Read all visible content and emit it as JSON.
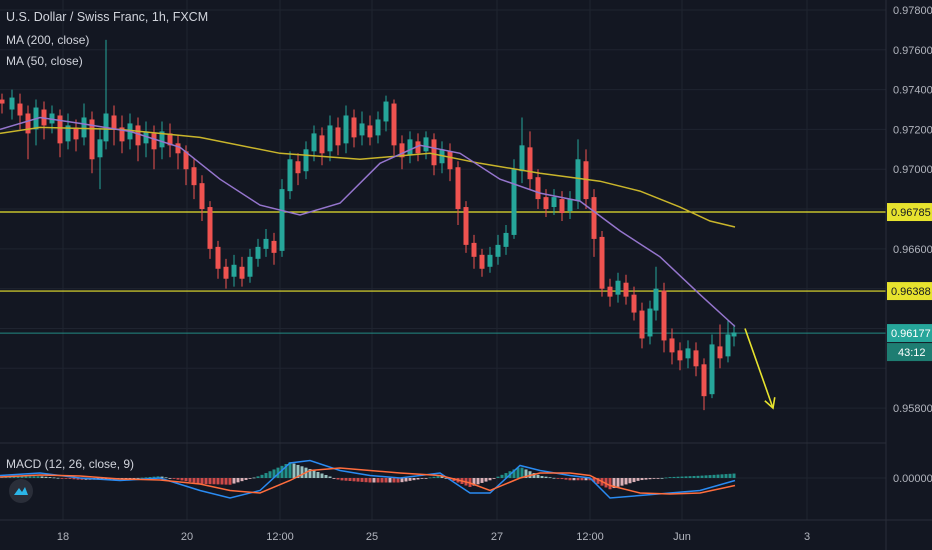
{
  "header": {
    "title": "U.S. Dollar / Swiss Franc, 1h, FXCM",
    "ma200_label": "MA (200, close)",
    "ma50_label": "MA (50, close)",
    "macd_label": "MACD (12, 26, close, 9)"
  },
  "colors": {
    "background": "#131722",
    "grid": "#1f2430",
    "up": "#26a69a",
    "down": "#ef5350",
    "ma200": "#c9b52b",
    "ma50": "#9575cd",
    "hline": "#e7e32e",
    "price_line": "#26a69a",
    "macd_line": "#2a8bf2",
    "signal_line": "#ff6d3d",
    "arrow": "#e7e32e"
  },
  "chart_data": [
    {
      "type": "line",
      "title": "U.S. Dollar / Swiss Franc, 1h, FXCM",
      "note_series": "candlestick price series with moving averages",
      "x_ticks": [
        "18",
        "20",
        "12:00",
        "25",
        "27",
        "12:00",
        "Jun",
        "3"
      ],
      "y_ticks": [
        "0.97800",
        "0.97600",
        "0.97400",
        "0.97200",
        "0.97000",
        "0.96600",
        "0.95800"
      ],
      "ylim": [
        0.9568,
        0.9782
      ],
      "price_tags": [
        {
          "label": "0.96785",
          "value": 0.96785,
          "style": "hline"
        },
        {
          "label": "0.96388",
          "value": 0.96388,
          "style": "hline"
        },
        {
          "label": "0.96177",
          "value": 0.96177,
          "style": "last"
        }
      ],
      "countdown": "43:12",
      "horizontal_lines": [
        0.96785,
        0.96388
      ],
      "series": [
        {
          "name": "MA (200, close)",
          "role": "ma200",
          "points": [
            [
              0,
              0.9718
            ],
            [
              40,
              0.9721
            ],
            [
              120,
              0.972
            ],
            [
              200,
              0.9716
            ],
            [
              280,
              0.9708
            ],
            [
              360,
              0.9705
            ],
            [
              430,
              0.9708
            ],
            [
              480,
              0.9703
            ],
            [
              540,
              0.9698
            ],
            [
              600,
              0.9694
            ],
            [
              640,
              0.9689
            ],
            [
              680,
              0.9681
            ],
            [
              710,
              0.9674
            ],
            [
              735,
              0.9671
            ]
          ]
        },
        {
          "name": "MA (50, close)",
          "role": "ma50",
          "points": [
            [
              0,
              0.972
            ],
            [
              40,
              0.9726
            ],
            [
              80,
              0.9723
            ],
            [
              130,
              0.9719
            ],
            [
              180,
              0.9711
            ],
            [
              220,
              0.9695
            ],
            [
              260,
              0.9682
            ],
            [
              300,
              0.9677
            ],
            [
              340,
              0.9683
            ],
            [
              380,
              0.9703
            ],
            [
              420,
              0.9712
            ],
            [
              460,
              0.9708
            ],
            [
              500,
              0.9695
            ],
            [
              540,
              0.9688
            ],
            [
              580,
              0.9684
            ],
            [
              620,
              0.9669
            ],
            [
              660,
              0.9656
            ],
            [
              700,
              0.9637
            ],
            [
              735,
              0.9621
            ]
          ]
        }
      ],
      "candles": [
        [
          2,
          0.9735,
          0.9733,
          0.9738,
          0.9728
        ],
        [
          12,
          0.973,
          0.9736,
          0.974,
          0.9725
        ],
        [
          20,
          0.9733,
          0.9727,
          0.9738,
          0.972
        ],
        [
          28,
          0.9728,
          0.9718,
          0.9732,
          0.9705
        ],
        [
          36,
          0.972,
          0.9731,
          0.9735,
          0.9712
        ],
        [
          44,
          0.973,
          0.9722,
          0.9734,
          0.9715
        ],
        [
          52,
          0.9723,
          0.9728,
          0.9732,
          0.9718
        ],
        [
          60,
          0.9727,
          0.9713,
          0.973,
          0.9706
        ],
        [
          68,
          0.9714,
          0.9722,
          0.9728,
          0.971
        ],
        [
          76,
          0.9721,
          0.9715,
          0.9725,
          0.9709
        ],
        [
          84,
          0.9716,
          0.9726,
          0.9733,
          0.9712
        ],
        [
          92,
          0.9725,
          0.9705,
          0.9729,
          0.9698
        ],
        [
          100,
          0.9706,
          0.9715,
          0.972,
          0.969
        ],
        [
          106,
          0.9714,
          0.9728,
          0.9765,
          0.971
        ],
        [
          114,
          0.9727,
          0.972,
          0.9732,
          0.9712
        ],
        [
          122,
          0.9721,
          0.9714,
          0.9727,
          0.9708
        ],
        [
          130,
          0.9715,
          0.9723,
          0.9728,
          0.971
        ],
        [
          138,
          0.9722,
          0.9712,
          0.9726,
          0.9704
        ],
        [
          146,
          0.9713,
          0.9719,
          0.9724,
          0.9706
        ],
        [
          154,
          0.9718,
          0.971,
          0.9722,
          0.97
        ],
        [
          162,
          0.9711,
          0.9719,
          0.9724,
          0.9705
        ],
        [
          170,
          0.9718,
          0.9712,
          0.9723,
          0.9706
        ],
        [
          178,
          0.9713,
          0.9708,
          0.9717,
          0.97
        ],
        [
          186,
          0.9709,
          0.97,
          0.9712,
          0.9692
        ],
        [
          194,
          0.9701,
          0.9692,
          0.9705,
          0.9685
        ],
        [
          202,
          0.9693,
          0.968,
          0.9697,
          0.9674
        ],
        [
          210,
          0.9681,
          0.966,
          0.9684,
          0.9655
        ],
        [
          218,
          0.9661,
          0.965,
          0.9664,
          0.9645
        ],
        [
          226,
          0.9651,
          0.9645,
          0.9655,
          0.964
        ],
        [
          234,
          0.9646,
          0.9652,
          0.9657,
          0.9641
        ],
        [
          242,
          0.9651,
          0.9645,
          0.9656,
          0.9641
        ],
        [
          250,
          0.9646,
          0.9656,
          0.966,
          0.9643
        ],
        [
          258,
          0.9655,
          0.9661,
          0.9665,
          0.9651
        ],
        [
          266,
          0.966,
          0.9665,
          0.967,
          0.9656
        ],
        [
          274,
          0.9664,
          0.9658,
          0.9668,
          0.9652
        ],
        [
          282,
          0.9659,
          0.969,
          0.9695,
          0.9656
        ],
        [
          290,
          0.9689,
          0.9705,
          0.9709,
          0.9685
        ],
        [
          298,
          0.9704,
          0.9698,
          0.9708,
          0.9692
        ],
        [
          306,
          0.9699,
          0.971,
          0.9714,
          0.9695
        ],
        [
          314,
          0.9709,
          0.9718,
          0.9722,
          0.9704
        ],
        [
          322,
          0.9717,
          0.9708,
          0.9721,
          0.9702
        ],
        [
          330,
          0.9709,
          0.9722,
          0.9727,
          0.9704
        ],
        [
          338,
          0.9721,
          0.9712,
          0.9726,
          0.9707
        ],
        [
          346,
          0.9713,
          0.9727,
          0.9732,
          0.9708
        ],
        [
          354,
          0.9726,
          0.9716,
          0.973,
          0.9711
        ],
        [
          362,
          0.9717,
          0.9723,
          0.9729,
          0.9712
        ],
        [
          370,
          0.9722,
          0.9716,
          0.9727,
          0.9712
        ],
        [
          378,
          0.9717,
          0.9725,
          0.9729,
          0.9713
        ],
        [
          386,
          0.9724,
          0.9734,
          0.9737,
          0.9719
        ],
        [
          394,
          0.9733,
          0.9712,
          0.9735,
          0.9707
        ],
        [
          402,
          0.9713,
          0.9706,
          0.9717,
          0.97
        ],
        [
          410,
          0.9707,
          0.9715,
          0.9719,
          0.9703
        ],
        [
          418,
          0.9714,
          0.9708,
          0.9718,
          0.9704
        ],
        [
          426,
          0.9709,
          0.9716,
          0.9719,
          0.9705
        ],
        [
          434,
          0.9715,
          0.9702,
          0.9718,
          0.9697
        ],
        [
          442,
          0.9703,
          0.971,
          0.9714,
          0.9698
        ],
        [
          450,
          0.9709,
          0.97,
          0.9713,
          0.9694
        ],
        [
          458,
          0.9701,
          0.968,
          0.9704,
          0.9672
        ],
        [
          466,
          0.9681,
          0.9662,
          0.9684,
          0.9658
        ],
        [
          474,
          0.9663,
          0.9656,
          0.9667,
          0.965
        ],
        [
          482,
          0.9657,
          0.965,
          0.966,
          0.9646
        ],
        [
          490,
          0.9651,
          0.9657,
          0.9661,
          0.9648
        ],
        [
          498,
          0.9656,
          0.9662,
          0.9667,
          0.9652
        ],
        [
          506,
          0.9661,
          0.9668,
          0.9672,
          0.9657
        ],
        [
          514,
          0.9667,
          0.97,
          0.9705,
          0.9665
        ],
        [
          522,
          0.9699,
          0.9712,
          0.9726,
          0.9693
        ],
        [
          530,
          0.9711,
          0.9695,
          0.9719,
          0.969
        ],
        [
          538,
          0.9696,
          0.9685,
          0.97,
          0.968
        ],
        [
          546,
          0.9686,
          0.968,
          0.969,
          0.9676
        ],
        [
          554,
          0.9681,
          0.9686,
          0.969,
          0.9677
        ],
        [
          562,
          0.9685,
          0.9678,
          0.9689,
          0.9674
        ],
        [
          570,
          0.9679,
          0.9685,
          0.9689,
          0.9675
        ],
        [
          578,
          0.9684,
          0.9705,
          0.9715,
          0.968
        ],
        [
          586,
          0.9704,
          0.9685,
          0.971,
          0.968
        ],
        [
          594,
          0.9686,
          0.9665,
          0.969,
          0.9656
        ],
        [
          602,
          0.9666,
          0.964,
          0.9669,
          0.9636
        ],
        [
          610,
          0.9641,
          0.9636,
          0.9645,
          0.9631
        ],
        [
          618,
          0.9637,
          0.9644,
          0.9648,
          0.9633
        ],
        [
          626,
          0.9643,
          0.9636,
          0.9647,
          0.9632
        ],
        [
          634,
          0.9637,
          0.9628,
          0.9641,
          0.9624
        ],
        [
          642,
          0.9629,
          0.9615,
          0.9633,
          0.961
        ],
        [
          650,
          0.9616,
          0.963,
          0.9634,
          0.9612
        ],
        [
          656,
          0.9629,
          0.964,
          0.9651,
          0.9624
        ],
        [
          664,
          0.9639,
          0.9614,
          0.9643,
          0.9608
        ],
        [
          672,
          0.9615,
          0.9608,
          0.962,
          0.9602
        ],
        [
          680,
          0.9609,
          0.9604,
          0.9613,
          0.9599
        ],
        [
          688,
          0.9605,
          0.961,
          0.9614,
          0.96
        ],
        [
          696,
          0.9609,
          0.9601,
          0.9613,
          0.9596
        ],
        [
          704,
          0.9602,
          0.9586,
          0.9605,
          0.9579
        ],
        [
          712,
          0.9587,
          0.9612,
          0.9617,
          0.9585
        ],
        [
          720,
          0.9611,
          0.9605,
          0.9622,
          0.96
        ],
        [
          728,
          0.9606,
          0.9617,
          0.9624,
          0.9603
        ],
        [
          734,
          0.9616,
          0.9618,
          0.9622,
          0.9611
        ]
      ],
      "projection_arrow": {
        "from": [
          745,
          0.962
        ],
        "to": [
          773,
          0.958
        ]
      }
    },
    {
      "type": "bar",
      "title": "MACD (12, 26, close, 9)",
      "y_ticks": [
        "0.00000"
      ],
      "ylim": [
        -0.0006,
        0.0006
      ],
      "series": [
        {
          "name": "MACD",
          "role": "macd_line",
          "points": [
            [
              0,
              5e-05
            ],
            [
              40,
              0.0001
            ],
            [
              80,
              0.0
            ],
            [
              120,
              -5e-05
            ],
            [
              160,
              0.0
            ],
            [
              200,
              -0.00025
            ],
            [
              230,
              -0.0004
            ],
            [
              260,
              -0.00025
            ],
            [
              290,
              0.0003
            ],
            [
              310,
              0.00035
            ],
            [
              340,
              0.00015
            ],
            [
              370,
              5e-05
            ],
            [
              400,
              0.0
            ],
            [
              440,
              0.0001
            ],
            [
              470,
              -0.0003
            ],
            [
              490,
              -0.0003
            ],
            [
              520,
              0.00025
            ],
            [
              540,
              0.00015
            ],
            [
              570,
              5e-05
            ],
            [
              590,
              0.0
            ],
            [
              610,
              -0.0004
            ],
            [
              640,
              -0.00035
            ],
            [
              670,
              -0.0003
            ],
            [
              700,
              -0.00025
            ],
            [
              735,
              -5e-05
            ]
          ]
        },
        {
          "name": "Signal",
          "role": "signal_line",
          "points": [
            [
              0,
              2e-05
            ],
            [
              40,
              6e-05
            ],
            [
              80,
              4e-05
            ],
            [
              120,
              -2e-05
            ],
            [
              160,
              -4e-05
            ],
            [
              200,
              -0.00012
            ],
            [
              230,
              -0.00025
            ],
            [
              260,
              -0.0003
            ],
            [
              290,
              -5e-05
            ],
            [
              310,
              0.00015
            ],
            [
              340,
              0.0002
            ],
            [
              370,
              0.00015
            ],
            [
              400,
              0.0001
            ],
            [
              440,
              5e-05
            ],
            [
              470,
              -0.0001
            ],
            [
              490,
              -0.00025
            ],
            [
              520,
              0.0
            ],
            [
              540,
              0.0001
            ],
            [
              570,
              0.0001
            ],
            [
              590,
              5e-05
            ],
            [
              610,
              -0.00015
            ],
            [
              640,
              -0.0003
            ],
            [
              670,
              -0.00032
            ],
            [
              700,
              -0.0003
            ],
            [
              735,
              -0.00015
            ]
          ]
        }
      ]
    }
  ]
}
